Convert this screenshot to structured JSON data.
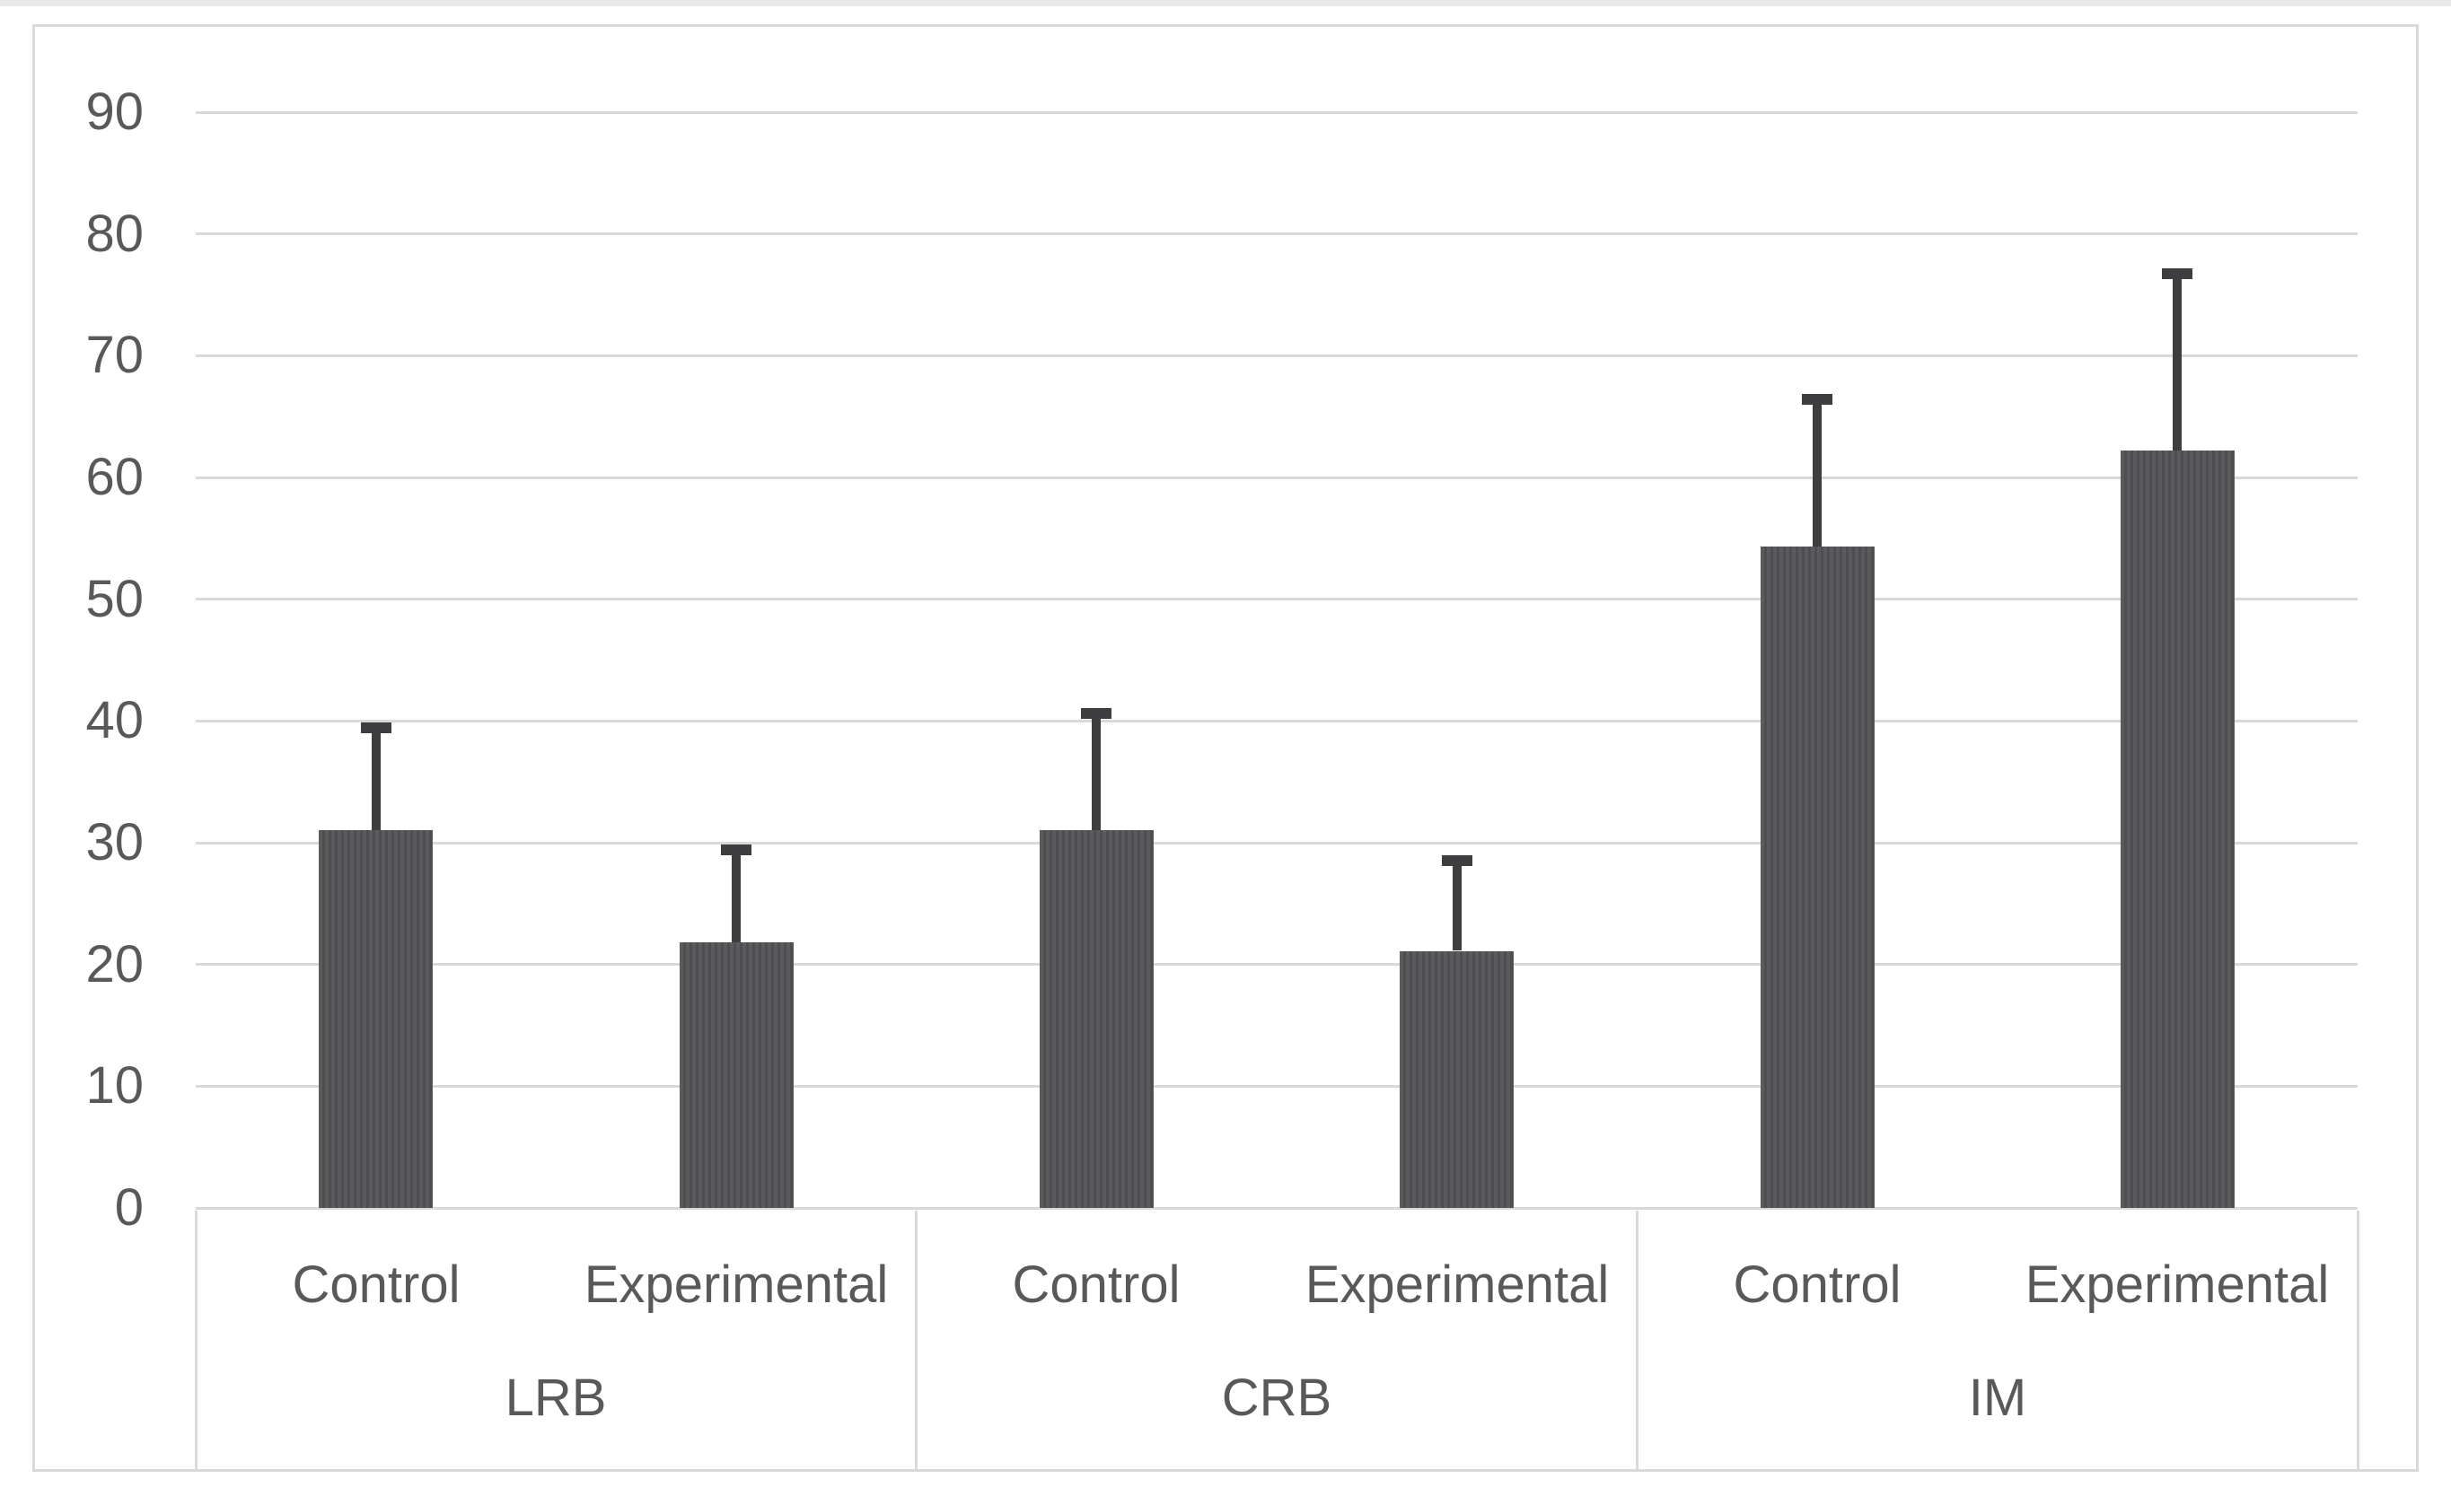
{
  "chart_data": {
    "type": "bar",
    "title": "",
    "xlabel": "",
    "ylabel": "",
    "categories": [
      "LRB",
      "CRB",
      "IM"
    ],
    "series": [
      {
        "name": "Control",
        "values": [
          31.0,
          31.0,
          54.3
        ],
        "errors_plus": [
          8.4,
          9.6,
          12.1
        ]
      },
      {
        "name": "Experimental",
        "values": [
          21.8,
          21.1,
          62.2
        ],
        "errors_plus": [
          7.6,
          7.4,
          14.5
        ]
      }
    ],
    "sub_labels_per_group": [
      "Control",
      "Experimental"
    ],
    "ylim": [
      0,
      90
    ],
    "yticks": [
      0,
      10,
      20,
      30,
      40,
      50,
      60,
      70,
      80,
      90
    ],
    "grid": true,
    "legend_position": "none",
    "colors": {
      "bar_base": "#5b5b5d",
      "bar_stripe": "#4e4e50",
      "error_bar": "#3e3e40",
      "gridline": "#d9d9d9",
      "axis_text": "#595959",
      "chart_border": "#d9d9d9",
      "screenshot_top_edge": "#e9e9e9",
      "background": "#ffffff"
    }
  }
}
